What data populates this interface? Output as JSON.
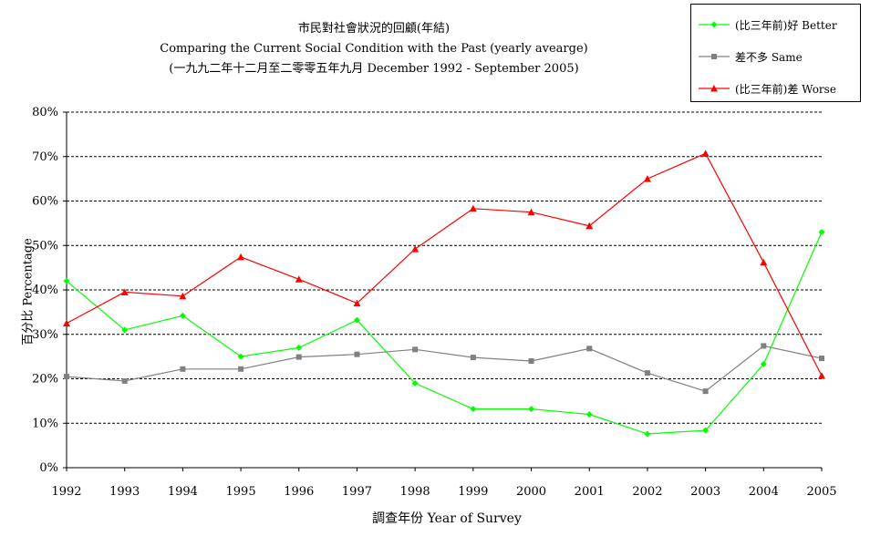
{
  "chart_data": {
    "type": "line",
    "title_lines": [
      "市民對社會狀況的回顧(年結)",
      "Comparing the Current Social Condition with the Past (yearly avearge)",
      "(一九九二年十二月至二零零五年九月 December 1992 - September 2005)"
    ],
    "xlabel": "調查年份 Year of Survey",
    "ylabel": "百分比 Percentage",
    "categories": [
      "1992",
      "1993",
      "1994",
      "1995",
      "1996",
      "1997",
      "1998",
      "1999",
      "2000",
      "2001",
      "2002",
      "2003",
      "2004",
      "2005"
    ],
    "y_ticks": [
      "0%",
      "10%",
      "20%",
      "30%",
      "40%",
      "50%",
      "60%",
      "70%",
      "80%"
    ],
    "ylim": [
      0,
      80
    ],
    "grid": true,
    "legend_position": "top-right",
    "series": [
      {
        "name": "(比三年前)好 Better",
        "color": "#00ff00",
        "marker": "diamond",
        "values": [
          42,
          31,
          34.2,
          25,
          27,
          33.2,
          19,
          13.2,
          13.2,
          12,
          7.6,
          8.4,
          23.3,
          53
        ]
      },
      {
        "name": "差不多 Same",
        "color": "#808080",
        "marker": "square",
        "values": [
          20.5,
          19.5,
          22.2,
          22.2,
          24.9,
          25.5,
          26.6,
          24.8,
          24,
          26.8,
          21.3,
          17.2,
          27.4,
          24.6
        ]
      },
      {
        "name": "(比三年前)差 Worse",
        "color": "#ff0000",
        "marker": "triangle",
        "values": [
          32.5,
          39.5,
          38.6,
          47.4,
          42.4,
          37,
          49.2,
          58.3,
          57.5,
          54.4,
          65,
          70.7,
          46.2,
          20.7
        ]
      }
    ]
  }
}
